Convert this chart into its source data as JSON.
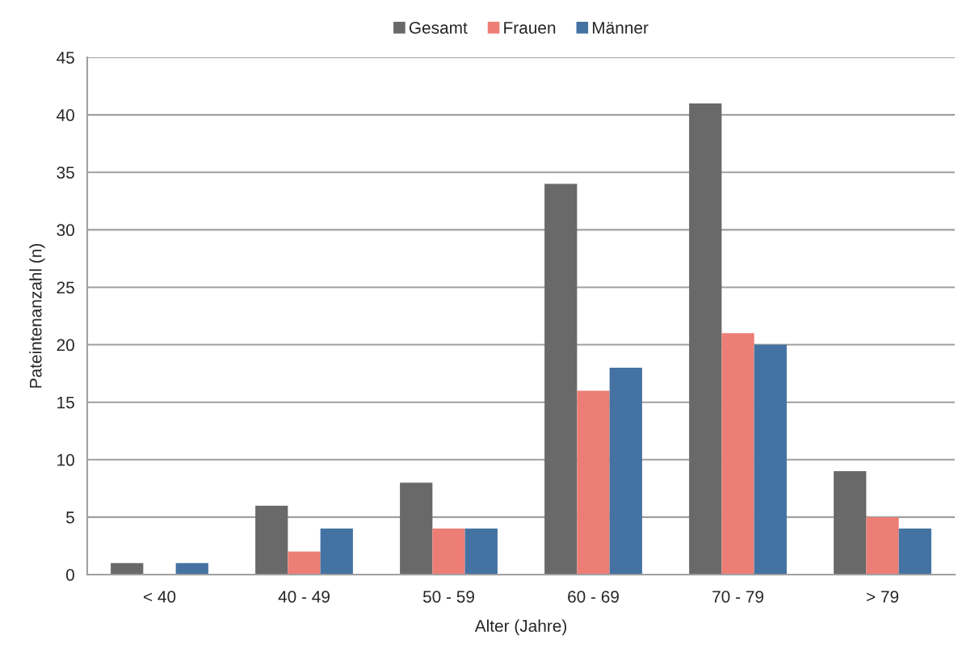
{
  "chart_data": {
    "type": "bar",
    "xlabel": "Alter (Jahre)",
    "ylabel": "Pateintenanzahl (n)",
    "categories": [
      "< 40",
      "40 - 49",
      "50 - 59",
      "60 - 69",
      "70 - 79",
      "> 79"
    ],
    "series": [
      {
        "name": "Gesamt",
        "color": "#696969",
        "values": [
          1,
          6,
          8,
          34,
          41,
          9
        ]
      },
      {
        "name": "Frauen",
        "color": "#ec7e75",
        "values": [
          0,
          2,
          4,
          16,
          21,
          5
        ]
      },
      {
        "name": "Männer",
        "color": "#4472a2",
        "values": [
          1,
          4,
          4,
          18,
          20,
          4
        ]
      }
    ],
    "ylim": [
      0,
      45
    ],
    "yticks": [
      0,
      5,
      10,
      15,
      20,
      25,
      30,
      35,
      40,
      45
    ],
    "grid": "y",
    "legend": "top"
  }
}
